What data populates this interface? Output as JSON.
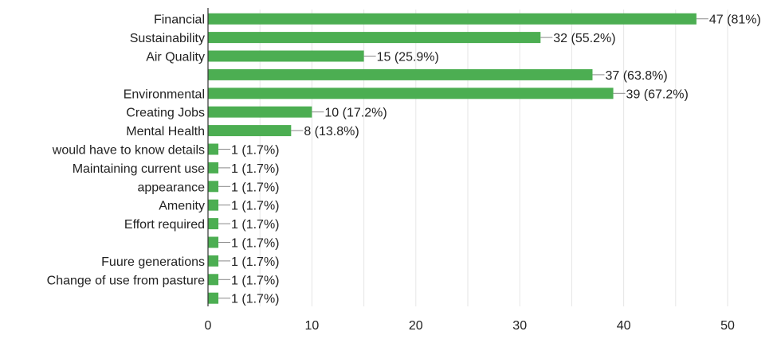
{
  "chart_data": {
    "type": "bar",
    "orientation": "horizontal",
    "categories": [
      "Financial",
      "Sustainability",
      "Air Quality",
      "",
      "Environmental",
      "Creating Jobs",
      "Mental Health",
      "would have to know details",
      "Maintaining current use",
      "appearance",
      "Amenity",
      "Effort required",
      "",
      "Fuure generations",
      "Change of use from pasture",
      ""
    ],
    "values": [
      47,
      32,
      15,
      37,
      39,
      10,
      8,
      1,
      1,
      1,
      1,
      1,
      1,
      1,
      1,
      1
    ],
    "data_labels": [
      "47 (81%)",
      "32 (55.2%)",
      "15 (25.9%)",
      "37 (63.8%)",
      "39 (67.2%)",
      "10 (17.2%)",
      "8 (13.8%)",
      "1 (1.7%)",
      "1 (1.7%)",
      "1 (1.7%)",
      "1 (1.7%)",
      "1 (1.7%)",
      "1 (1.7%)",
      "1 (1.7%)",
      "1 (1.7%)",
      "1 (1.7%)"
    ],
    "xlim": [
      0,
      50
    ],
    "xticks": [
      "0",
      "10",
      "20",
      "30",
      "40",
      "50"
    ],
    "grid": true,
    "legend": "none",
    "colors": {
      "bar": "#4cae52",
      "grid": "#e6e6e6",
      "axis": "#333333"
    }
  }
}
